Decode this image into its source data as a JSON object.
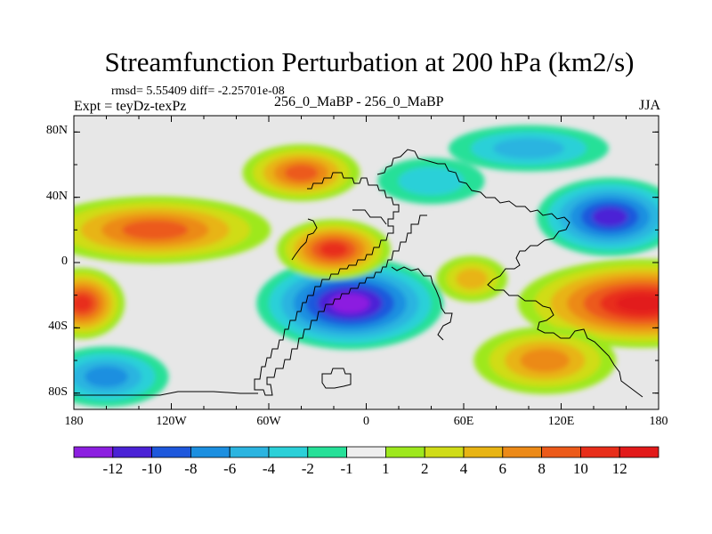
{
  "header": {
    "title": "Streamfunction Perturbation at 200 hPa (km2/s)",
    "stats": "rmsd= 5.55409 diff= -2.25701e-08",
    "left_label": "Expt = teyDz-texPz",
    "center_label": "256_0_MaBP - 256_0_MaBP",
    "right_label": "JJA"
  },
  "chart_data": {
    "type": "heatmap",
    "title": "Streamfunction Perturbation at 200 hPa (km2/s)",
    "variable": "Streamfunction perturbation",
    "units": "km2/s",
    "x_range": [
      -180,
      180
    ],
    "y_range": [
      -90,
      90
    ],
    "x_ticks": [
      {
        "value": -180,
        "label": "180"
      },
      {
        "value": -120,
        "label": "120W"
      },
      {
        "value": -60,
        "label": "60W"
      },
      {
        "value": 0,
        "label": "0"
      },
      {
        "value": 60,
        "label": "60E"
      },
      {
        "value": 120,
        "label": "120E"
      },
      {
        "value": 180,
        "label": "180"
      }
    ],
    "y_ticks": [
      {
        "value": 80,
        "label": "80N"
      },
      {
        "value": 40,
        "label": "40N"
      },
      {
        "value": 0,
        "label": "0"
      },
      {
        "value": -40,
        "label": "40S"
      },
      {
        "value": -80,
        "label": "80S"
      }
    ],
    "colorbar": {
      "labels": [
        "-12",
        "-10",
        "-8",
        "-6",
        "-4",
        "-2",
        "-1",
        "1",
        "2",
        "4",
        "6",
        "8",
        "10",
        "12"
      ],
      "colors": [
        "#8c1fe0",
        "#4b22d6",
        "#1e58dc",
        "#1c8fe0",
        "#2bb4e0",
        "#2bd0d8",
        "#26e098",
        "#eeeeee",
        "#9ee81e",
        "#d0dc18",
        "#e8b414",
        "#ec8a18",
        "#ec5a1a",
        "#e82e1a",
        "#e21a1a"
      ]
    },
    "features": [
      {
        "name": "Strong negative center",
        "lon": -10,
        "lat": -25,
        "value": -12
      },
      {
        "name": "Strong positive center",
        "lon": 170,
        "lat": -25,
        "value": 12
      },
      {
        "name": "Positive center",
        "lon": -175,
        "lat": -25,
        "value": 10
      },
      {
        "name": "Negative center",
        "lon": 150,
        "lat": 28,
        "value": -10
      },
      {
        "name": "Positive center",
        "lon": -20,
        "lat": 8,
        "value": 10
      },
      {
        "name": "Positive center",
        "lon": -40,
        "lat": 55,
        "value": 8
      },
      {
        "name": "Positive center",
        "lon": -130,
        "lat": 20,
        "value": 8
      },
      {
        "name": "Positive center",
        "lon": 110,
        "lat": -60,
        "value": 6
      },
      {
        "name": "Negative center",
        "lon": -160,
        "lat": -70,
        "value": -6
      }
    ]
  }
}
